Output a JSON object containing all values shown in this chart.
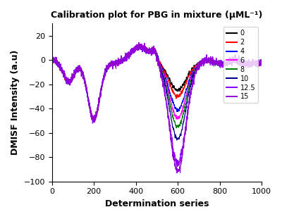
{
  "title": "Calibration plot for PBG in mixture (μML⁻¹)",
  "xlabel": "Determination series",
  "ylabel": "DMISF Intensity (a.u)",
  "xlim": [
    0,
    1000
  ],
  "ylim": [
    -100,
    30
  ],
  "yticks": [
    -100,
    -80,
    -60,
    -40,
    -20,
    0,
    20
  ],
  "xticks": [
    0,
    200,
    400,
    600,
    800,
    1000
  ],
  "series": [
    {
      "label": "0",
      "color": "#000000"
    },
    {
      "label": "2",
      "color": "#ff0000"
    },
    {
      "label": "4",
      "color": "#0000ff"
    },
    {
      "label": "6",
      "color": "#ff00ff"
    },
    {
      "label": "8",
      "color": "#008000"
    },
    {
      "label": "10",
      "color": "#00008b"
    },
    {
      "label": "12.5",
      "color": "#8b00ff"
    },
    {
      "label": "15",
      "color": "#9400d3"
    }
  ],
  "figsize": [
    4.0,
    3.11
  ],
  "dpi": 100,
  "trough2_values": [
    -22,
    -27,
    -38,
    -45,
    -52,
    -62,
    -82,
    -88
  ],
  "noise_scales": [
    0.8,
    0.8,
    0.8,
    0.8,
    0.8,
    0.8,
    1.5,
    1.5
  ]
}
